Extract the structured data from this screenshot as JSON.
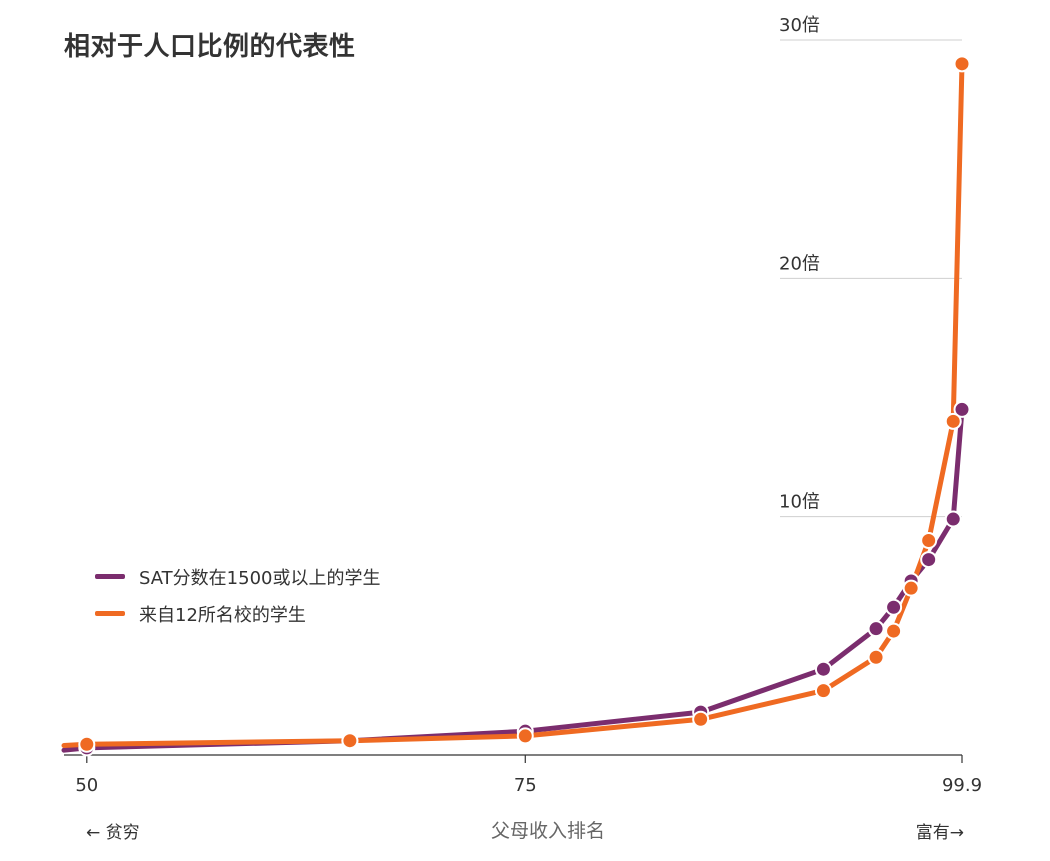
{
  "chart_data": {
    "type": "line",
    "title": "相对于人口比例的代表性",
    "xlabel": "父母收入排名",
    "x_left_note": "← 贫穷",
    "x_right_note": "富有→",
    "x_ticks": [
      "50",
      "75",
      "99.9"
    ],
    "y_ticks": [
      "10倍",
      "20倍",
      "30倍"
    ],
    "xlim": [
      48.7,
      99.9
    ],
    "ylim": [
      0,
      30
    ],
    "grid": "horizontal",
    "legend_position": "left",
    "series": [
      {
        "name": "SAT分数在1500或以上的学生",
        "color": "#7b2d6e",
        "points": [
          [
            48.7,
            0.2
          ],
          [
            50,
            0.3
          ],
          [
            65,
            0.6
          ],
          [
            75,
            1.0
          ],
          [
            85,
            1.8
          ],
          [
            92,
            3.6
          ],
          [
            95,
            5.3
          ],
          [
            96,
            6.2
          ],
          [
            97,
            7.3
          ],
          [
            98,
            8.2
          ],
          [
            99.4,
            9.9
          ],
          [
            99.9,
            14.5
          ]
        ]
      },
      {
        "name": "来自12所名校的学生",
        "color": "#ef6a22",
        "points": [
          [
            48.7,
            0.4
          ],
          [
            50,
            0.45
          ],
          [
            65,
            0.6
          ],
          [
            75,
            0.8
          ],
          [
            85,
            1.5
          ],
          [
            92,
            2.7
          ],
          [
            95,
            4.1
          ],
          [
            96,
            5.2
          ],
          [
            97,
            7.0
          ],
          [
            98,
            9.0
          ],
          [
            99.4,
            14.0
          ],
          [
            99.9,
            29.0
          ]
        ]
      }
    ]
  }
}
